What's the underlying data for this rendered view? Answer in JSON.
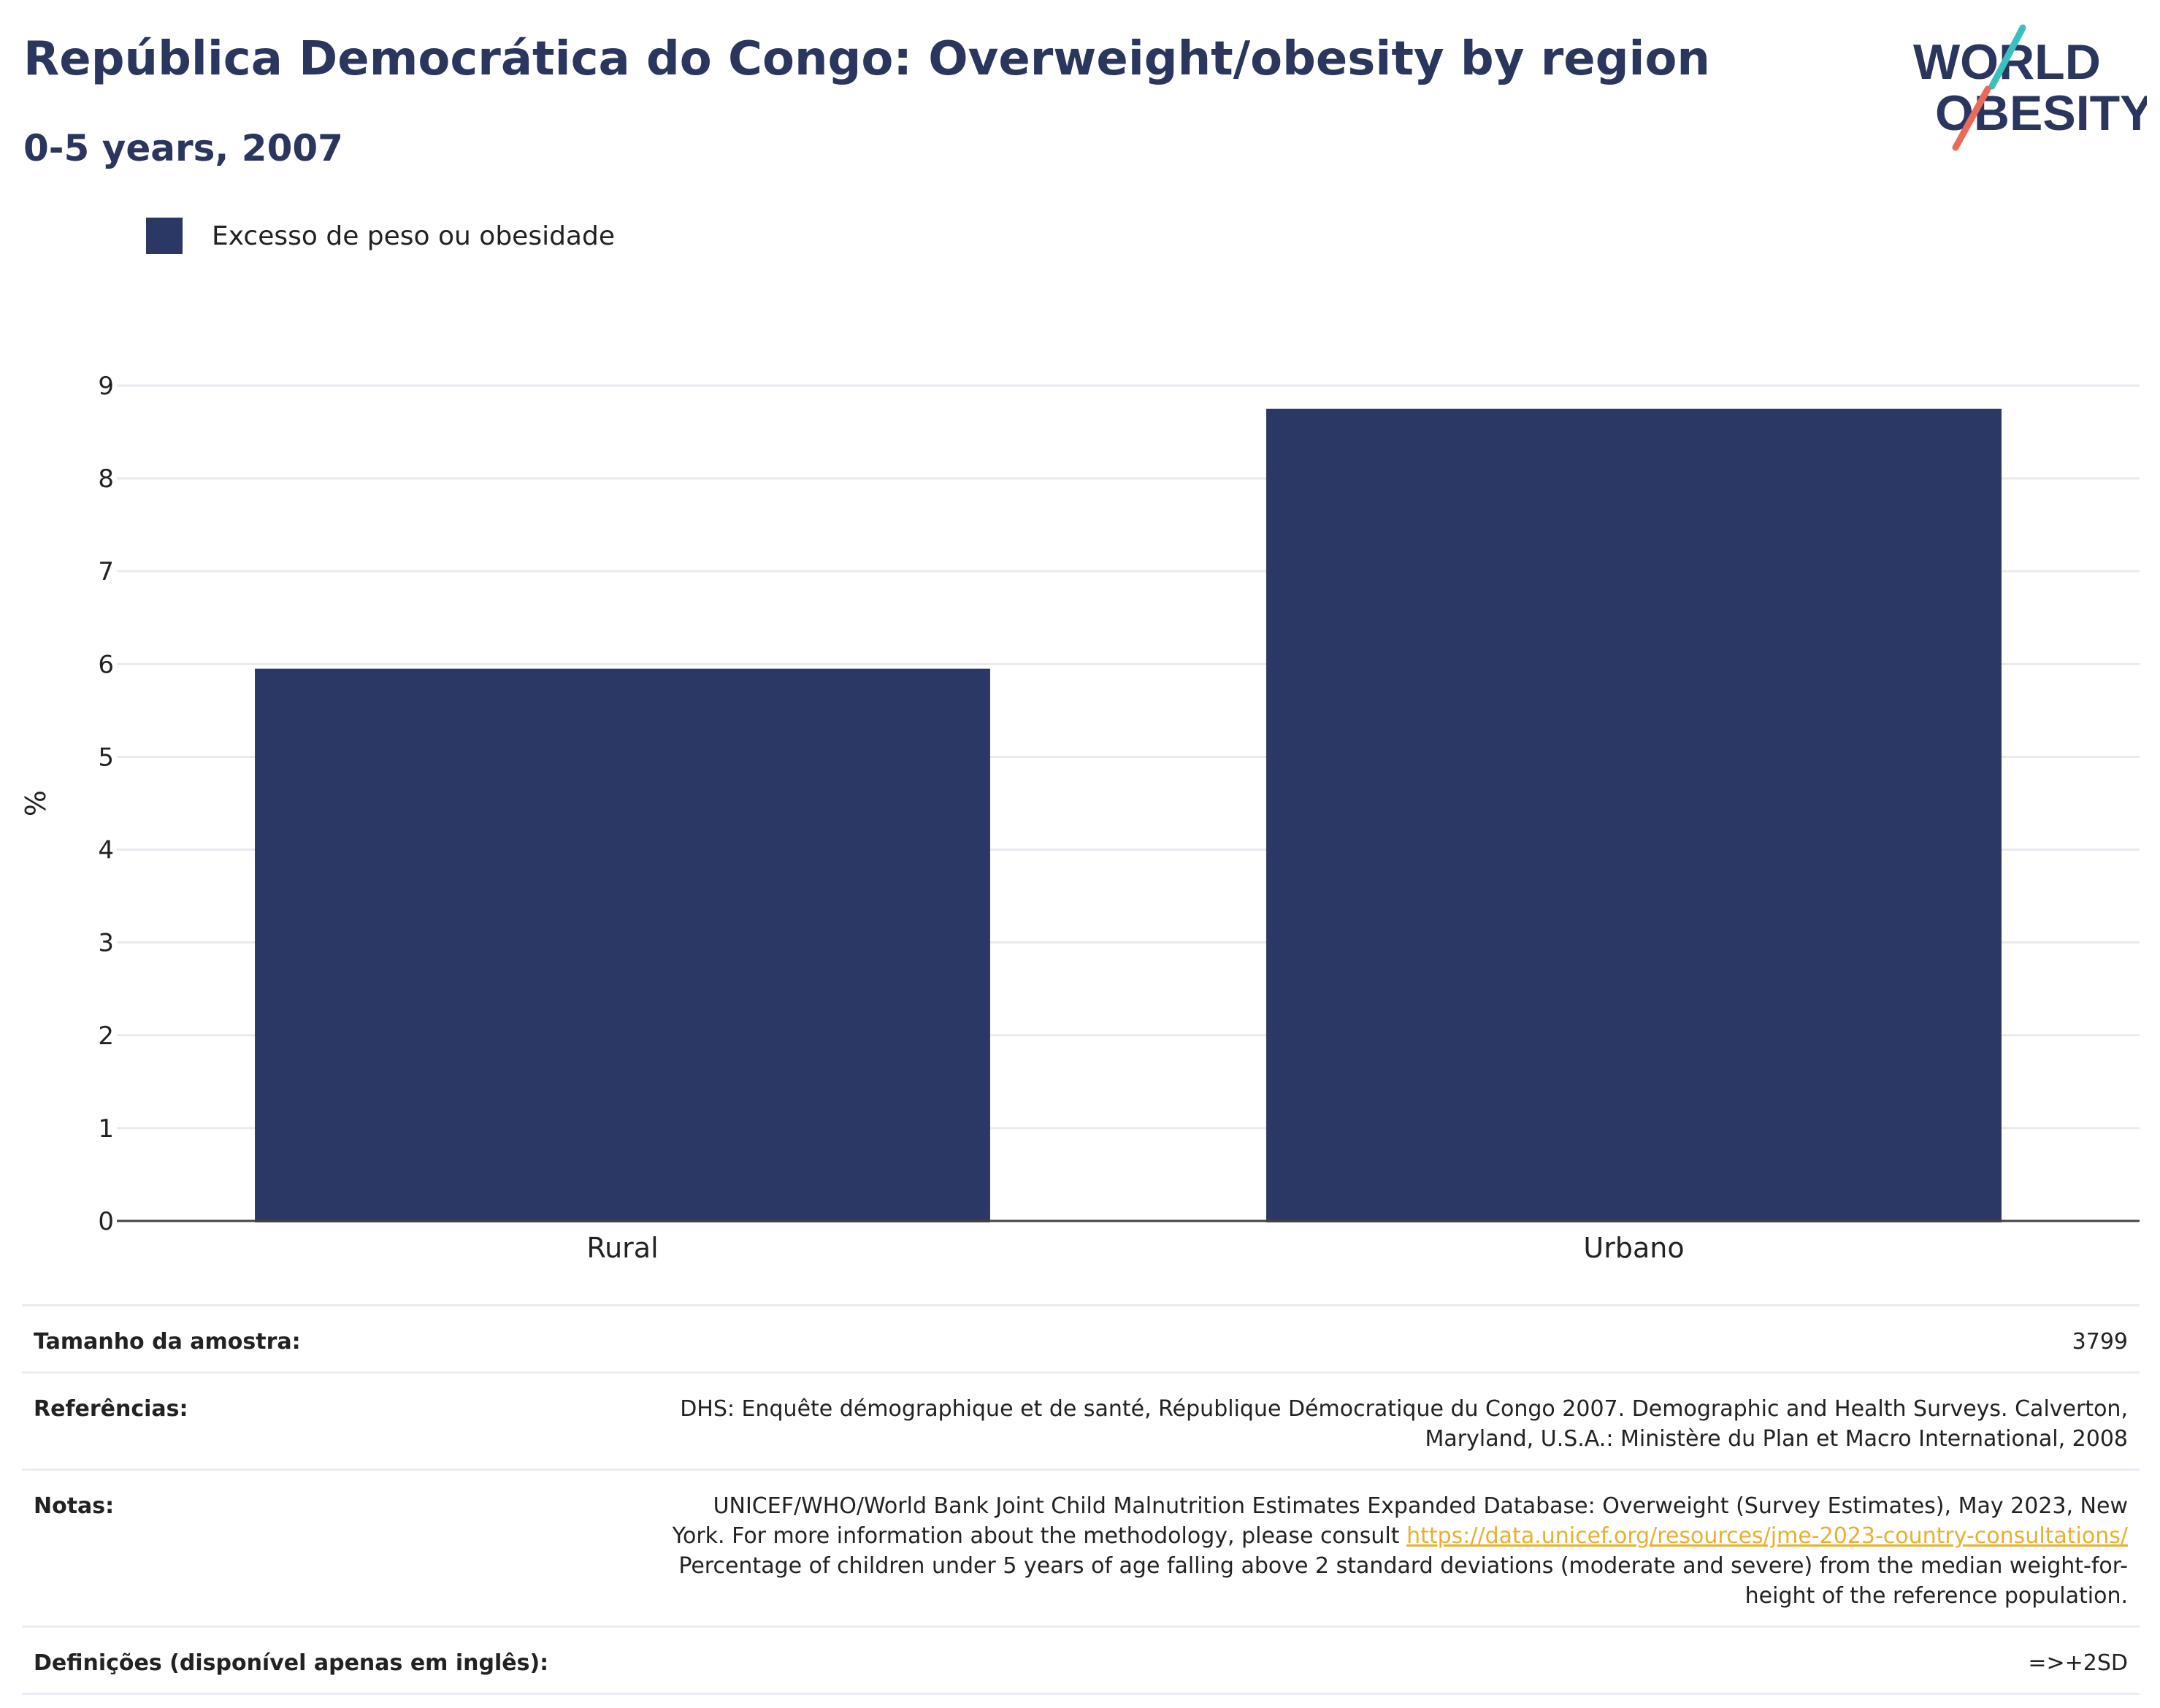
{
  "header": {
    "title": "República Democrática do Congo: Overweight/obesity by region",
    "subtitle": "0-5 years, 2007"
  },
  "logo": {
    "line1": "WORLD",
    "line2": "OBESITY",
    "text_color": "#2b365e",
    "accent_teal": "#3bbfbf",
    "accent_coral": "#e86a5b"
  },
  "legend": {
    "items": [
      {
        "label": "Excesso de peso ou obesidade",
        "color": "#2b3764"
      }
    ]
  },
  "chart_data": {
    "type": "bar",
    "categories": [
      "Rural",
      "Urbano"
    ],
    "series": [
      {
        "name": "Excesso de peso ou obesidade",
        "values": [
          5.95,
          8.75
        ],
        "color": "#2b3764"
      }
    ],
    "ylabel": "%",
    "xlabel": "",
    "ylim": [
      0,
      9
    ],
    "yticks": [
      0,
      1,
      2,
      3,
      4,
      5,
      6,
      7,
      8,
      9
    ],
    "grid": true,
    "legend_position": "top-left"
  },
  "info": {
    "sample_label": "Tamanho da amostra:",
    "sample_value": "3799",
    "references_label": "Referências:",
    "references_lines": [
      "DHS: Enquête démographique et de santé, République Démocratique du Congo 2007. Demographic and Health Surveys. Calverton,",
      "Maryland, U.S.A.: Ministère du Plan et Macro International, 2008"
    ],
    "notes_label": "Notas:",
    "notes_line1": "UNICEF/WHO/World Bank Joint Child Malnutrition Estimates Expanded Database: Overweight (Survey Estimates), May 2023, New",
    "notes_line2_text": "York. For more information about the methodology, please consult ",
    "notes_link": "https://data.unicef.org/resources/jme-2023-country-consultations/",
    "notes_line3": "Percentage of children under 5 years of age falling above 2 standard deviations (moderate and severe) from the median weight-for-",
    "notes_line4": "height of the reference population.",
    "definitions_label": "Definições (disponível apenas em inglês):",
    "definitions_value": "=>+2SD"
  }
}
